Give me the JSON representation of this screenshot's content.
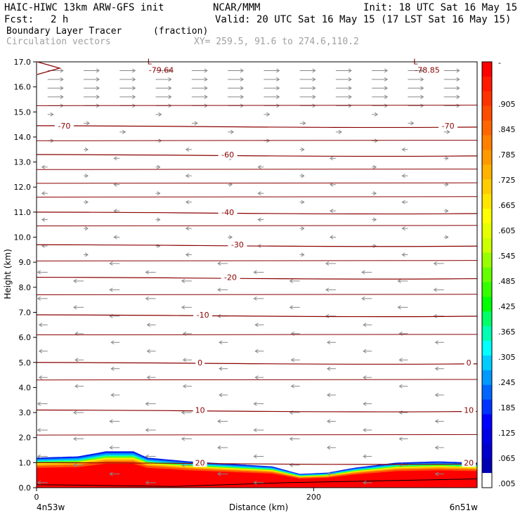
{
  "header": {
    "model": "HAIC-HIWC 13km ARW-GFS init",
    "org": "NCAR/MMM",
    "init": "Init: 18 UTC Sat 16 May 15",
    "fcst_label": "Fcst:",
    "fcst_value": "2 h",
    "valid": "Valid: 20 UTC Sat 16 May 15 (17 LST Sat 16 May 15)",
    "field": "Boundary Layer Tracer",
    "units": "(fraction)",
    "vectors": "Circulation vectors",
    "xy": "XY= 259.5, 91.6 to 274.6,110.2"
  },
  "axes": {
    "ylabel": "Height (km)",
    "xlabel": "Distance (km)",
    "x_start_label": "4n53w",
    "x_end_label": "6n51w",
    "x_ticks": [
      {
        "value": 0,
        "label": "0"
      },
      {
        "value": 200,
        "label": "200"
      }
    ],
    "x_range": [
      0,
      318
    ],
    "y_range": [
      0,
      17
    ],
    "y_ticks": [
      "0.0",
      "1.0",
      "2.0",
      "3.0",
      "4.0",
      "5.0",
      "6.0",
      "7.0",
      "8.0",
      "9.0",
      "10.0",
      "11.0",
      "12.0",
      "13.0",
      "14.0",
      "15.0",
      "16.0",
      "17.0"
    ]
  },
  "colorbar": {
    "top_label": "-",
    "labels": [
      ".905",
      ".845",
      ".785",
      ".725",
      ".665",
      ".605",
      ".545",
      ".485",
      ".425",
      ".365",
      ".305",
      ".245",
      ".185",
      ".125",
      ".065",
      ".005"
    ],
    "colors": [
      "#ff0000",
      "#ff1a00",
      "#ff3300",
      "#ff4d00",
      "#ff6600",
      "#ff8000",
      "#ff9900",
      "#ffb300",
      "#ffcc00",
      "#ffe600",
      "#ffff00",
      "#e6ff00",
      "#ccff00",
      "#99ff00",
      "#66ff00",
      "#33ff00",
      "#00ff00",
      "#00ff66",
      "#00ffb3",
      "#00ffff",
      "#00ccff",
      "#0099ff",
      "#0066ff",
      "#0033ff",
      "#0000ff",
      "#0000e6",
      "#0000cc",
      "#0000b3",
      "#ffffff"
    ]
  },
  "lows": [
    {
      "letter": "L",
      "value": "-79.64",
      "x": 80,
      "y": 16.9
    },
    {
      "letter": "L",
      "value": "-78.85",
      "x": 272,
      "y": 16.9
    }
  ],
  "chart_data": {
    "type": "heatmap",
    "description_keys": [
      "contours",
      "tracer_top_km"
    ],
    "contours": [
      {
        "label": "-70",
        "height_km": 14.45,
        "label_positions": [
          20,
          297
        ]
      },
      {
        "label": "-60",
        "height_km": 13.3,
        "label_positions": [
          138
        ]
      },
      {
        "label": "-40",
        "height_km": 11.0,
        "label_positions": [
          138
        ]
      },
      {
        "label": "-30",
        "height_km": 9.7,
        "label_positions": [
          145
        ]
      },
      {
        "label": "-20",
        "height_km": 8.4,
        "label_positions": [
          140
        ]
      },
      {
        "label": "-10",
        "height_km": 6.9,
        "label_positions": [
          120
        ]
      },
      {
        "label": "0",
        "height_km": 5.0,
        "label_positions": [
          118,
          312
        ]
      },
      {
        "label": "10",
        "height_km": 3.1,
        "label_positions": [
          118,
          312
        ]
      },
      {
        "label": "20",
        "height_km": 1.0,
        "label_positions": [
          118,
          312
        ]
      }
    ],
    "tracer_top_km": {
      "x": [
        0,
        30,
        50,
        70,
        80,
        110,
        140,
        170,
        190,
        210,
        230,
        260,
        290,
        318
      ],
      "top": [
        1.2,
        1.25,
        1.45,
        1.45,
        1.2,
        1.05,
        0.95,
        0.85,
        0.55,
        0.6,
        0.8,
        1.0,
        1.05,
        1.0
      ]
    }
  }
}
